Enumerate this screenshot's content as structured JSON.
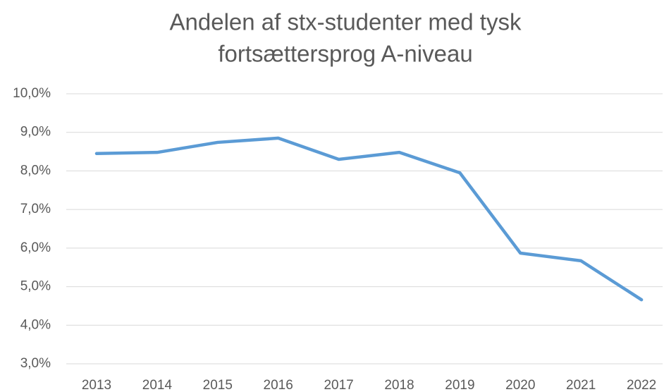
{
  "chart_data": {
    "type": "line",
    "title": [
      "Andelen af stx-studenter med tysk",
      "fortsættersprog A-niveau"
    ],
    "categories": [
      "2013",
      "2014",
      "2015",
      "2016",
      "2017",
      "2018",
      "2019",
      "2020",
      "2021",
      "2022"
    ],
    "values": [
      8.45,
      8.48,
      8.74,
      8.85,
      8.3,
      8.48,
      7.95,
      5.87,
      5.67,
      4.66
    ],
    "color": "#5b9bd5",
    "ylim": [
      3,
      10
    ],
    "yticks": [
      {
        "value": 3,
        "label": "3,0%"
      },
      {
        "value": 4,
        "label": "4,0%"
      },
      {
        "value": 5,
        "label": "5,0%"
      },
      {
        "value": 6,
        "label": "6,0%"
      },
      {
        "value": 7,
        "label": "7,0%"
      },
      {
        "value": 8,
        "label": "8,0%"
      },
      {
        "value": 9,
        "label": "9,0%"
      },
      {
        "value": 10,
        "label": "10,0%"
      }
    ],
    "grid": true
  }
}
